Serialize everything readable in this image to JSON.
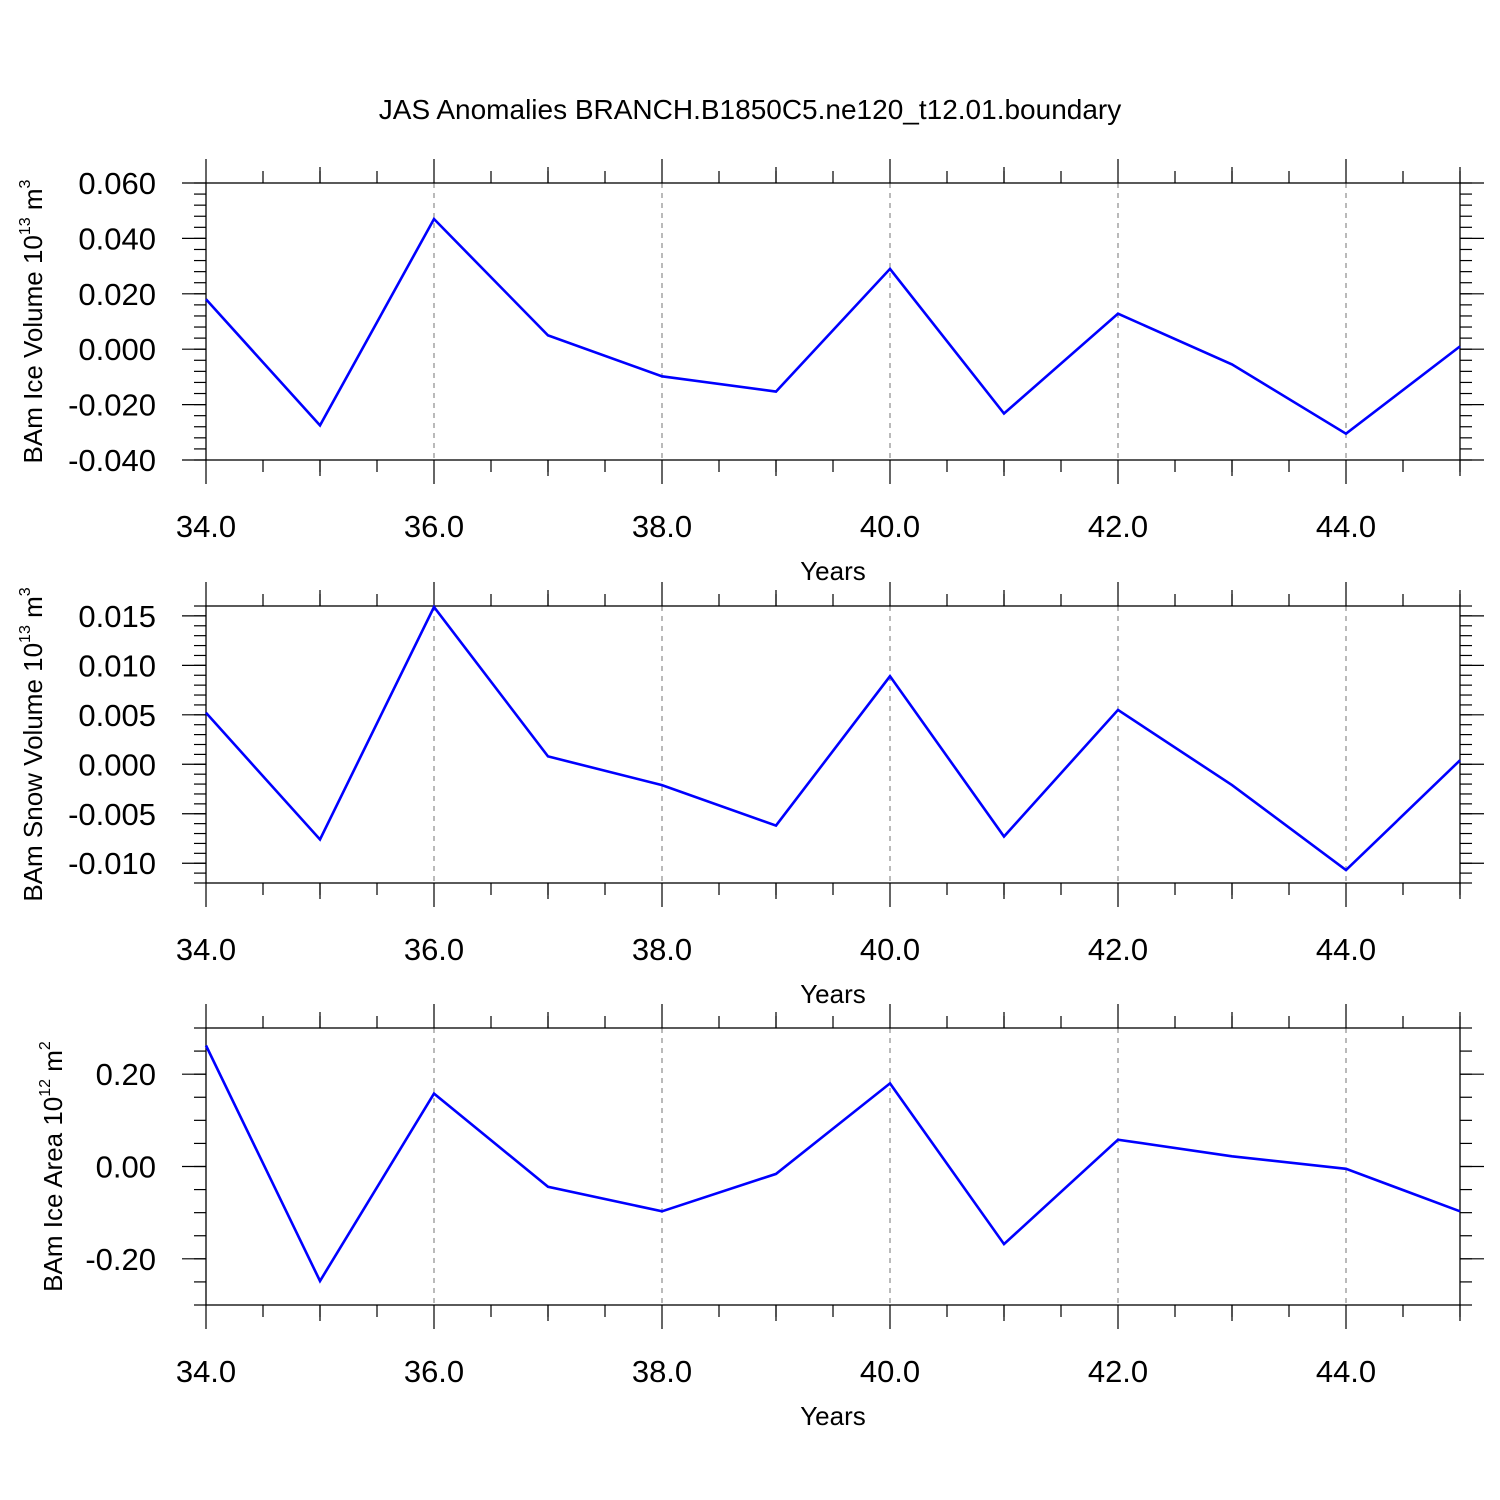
{
  "title": "JAS Anomalies BRANCH.B1850C5.ne120_t12.01.boundary",
  "colors": {
    "series": "#0000ff",
    "grid": "#8c8c8c",
    "frame": "#000000"
  },
  "chart_data": [
    {
      "type": "line",
      "xlabel": "Years",
      "ylabel": {
        "text": "BAm Ice Volume 10",
        "exponent": "13",
        "unit": " m",
        "unit_exponent": "3"
      },
      "xlim": [
        34,
        45
      ],
      "ylim": [
        -0.04,
        0.06
      ],
      "x_ticks": [
        34,
        36,
        38,
        40,
        42,
        44
      ],
      "x_tick_labels": [
        "34.0",
        "36.0",
        "38.0",
        "40.0",
        "42.0",
        "44.0"
      ],
      "y_ticks": [
        -0.04,
        -0.02,
        0.0,
        0.02,
        0.04,
        0.06
      ],
      "y_tick_labels": [
        "-0.040",
        "-0.020",
        "0.000",
        "0.020",
        "0.040",
        "0.060"
      ],
      "y_minor_step": 0.004,
      "grid": "vertical dashed at major x ticks",
      "series": [
        {
          "x": [
            34,
            35,
            36,
            37,
            38,
            39,
            40,
            41,
            42,
            43,
            44,
            45
          ],
          "values": [
            0.018,
            -0.0275,
            0.047,
            0.005,
            -0.0098,
            -0.0153,
            0.029,
            -0.0232,
            0.0128,
            -0.0055,
            -0.0305,
            0.001
          ]
        }
      ]
    },
    {
      "type": "line",
      "xlabel": "Years",
      "ylabel": {
        "text": "BAm Snow Volume 10",
        "exponent": "13",
        "unit": " m",
        "unit_exponent": "3"
      },
      "xlim": [
        34,
        45
      ],
      "ylim": [
        -0.012,
        0.016
      ],
      "x_ticks": [
        34,
        36,
        38,
        40,
        42,
        44
      ],
      "x_tick_labels": [
        "34.0",
        "36.0",
        "38.0",
        "40.0",
        "42.0",
        "44.0"
      ],
      "y_ticks": [
        -0.01,
        -0.005,
        0.0,
        0.005,
        0.01,
        0.015
      ],
      "y_tick_labels": [
        "-0.010",
        "-0.005",
        "0.000",
        "0.005",
        "0.010",
        "0.015"
      ],
      "y_minor_step": 0.001,
      "grid": "vertical dashed at major x ticks",
      "series": [
        {
          "x": [
            34,
            35,
            36,
            37,
            38,
            39,
            40,
            41,
            42,
            43,
            44,
            45
          ],
          "values": [
            0.0052,
            -0.0076,
            0.0159,
            0.0008,
            -0.0021,
            -0.0062,
            0.0089,
            -0.0073,
            0.0055,
            -0.0021,
            -0.0107,
            0.0004
          ]
        }
      ]
    },
    {
      "type": "line",
      "xlabel": "Years",
      "ylabel": {
        "text": "BAm Ice Area 10",
        "exponent": "12",
        "unit": " m",
        "unit_exponent": "2"
      },
      "xlim": [
        34,
        45
      ],
      "ylim": [
        -0.3,
        0.3
      ],
      "x_ticks": [
        34,
        36,
        38,
        40,
        42,
        44
      ],
      "x_tick_labels": [
        "34.0",
        "36.0",
        "38.0",
        "40.0",
        "42.0",
        "44.0"
      ],
      "y_ticks": [
        -0.2,
        0.0,
        0.2
      ],
      "y_tick_labels": [
        "-0.20",
        "0.00",
        "0.20"
      ],
      "y_minor_step": 0.05,
      "grid": "vertical dashed at major x ticks",
      "series": [
        {
          "x": [
            34,
            35,
            36,
            37,
            38,
            39,
            40,
            41,
            42,
            43,
            44,
            45
          ],
          "values": [
            0.262,
            -0.248,
            0.158,
            -0.044,
            -0.097,
            -0.016,
            0.18,
            -0.168,
            0.058,
            0.022,
            -0.005,
            -0.097
          ]
        }
      ]
    }
  ]
}
